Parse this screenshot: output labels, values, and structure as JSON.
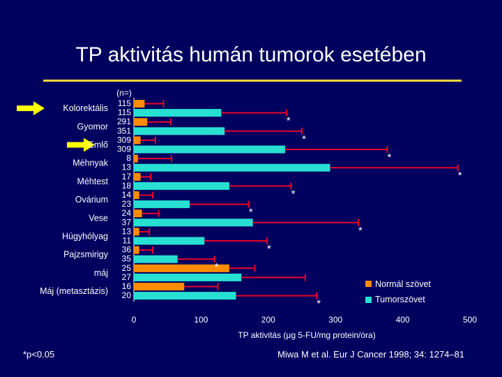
{
  "slide": {
    "title": "TP aktivitás  humán tumorok esetében",
    "footnote": "*p<0.05",
    "citation": "Miwa M et al. Eur J Cancer 1998; 34: 1274–81"
  },
  "colors": {
    "background": "#00005e",
    "normal": "#ff8c00",
    "tumor": "#27e0d2",
    "error_bar": "#e8002a",
    "arrow": "#ffff00",
    "title_rule": "#ffd83a"
  },
  "icons": {
    "highlight_arrow": "yellow-right-arrow"
  },
  "chart_data": {
    "type": "bar",
    "orientation": "horizontal",
    "n_header": "(n=)",
    "xlabel": "TP aktivitás (μg 5-FU/mg protein/óra)",
    "xlim": [
      0,
      500
    ],
    "xticks": [
      0,
      100,
      200,
      300,
      400,
      500
    ],
    "legend_position": "bottom-right",
    "categories": [
      "Kolorektális",
      "Gyomor",
      "Emlő",
      "Méhnyak",
      "Méhtest",
      "Ovárium",
      "Vese",
      "Húgyhólyag",
      "Pajzsmirigy",
      "máj",
      "Máj (metasztázis)"
    ],
    "highlighted_categories": [
      "Kolorektális",
      "Emlő"
    ],
    "significance_marker": "*",
    "series": [
      {
        "name": "Normál szövet",
        "n": [
          "115",
          "291",
          "309",
          "8",
          "17",
          "14",
          "24",
          "13",
          "36",
          "25",
          "16"
        ],
        "values": [
          16,
          20,
          10,
          6,
          10,
          8,
          12,
          8,
          8,
          142,
          75
        ],
        "errors": [
          28,
          35,
          22,
          50,
          15,
          20,
          25,
          15,
          20,
          38,
          50
        ]
      },
      {
        "name": "Tumorszövet",
        "n": [
          "115",
          "351",
          "309",
          "13",
          "18",
          "23",
          "37",
          "11",
          "35",
          "27",
          "20"
        ],
        "values": [
          130,
          135,
          225,
          292,
          142,
          83,
          177,
          105,
          65,
          160,
          152
        ],
        "errors": [
          97,
          115,
          152,
          190,
          92,
          88,
          157,
          93,
          55,
          95,
          120
        ],
        "significant": [
          true,
          true,
          true,
          true,
          true,
          true,
          true,
          true,
          true,
          false,
          true
        ]
      }
    ]
  }
}
